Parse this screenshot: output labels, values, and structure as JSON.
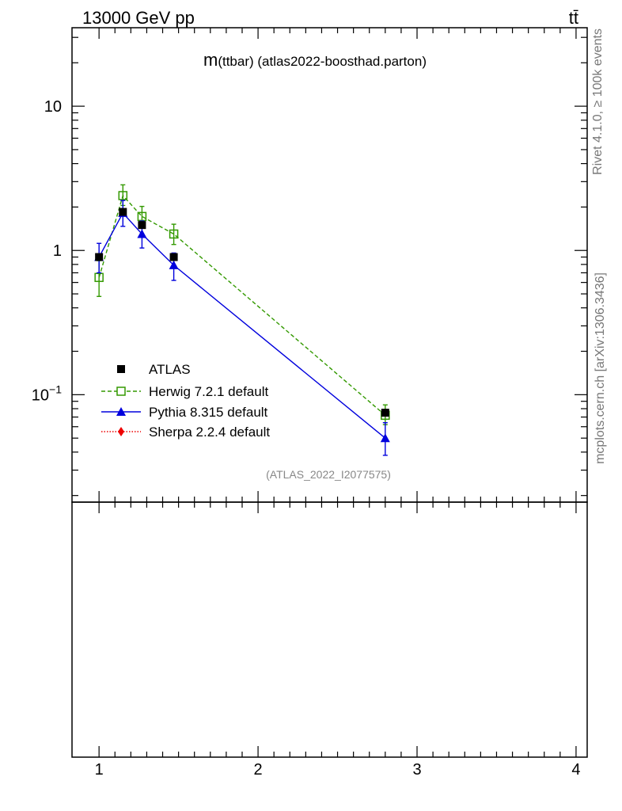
{
  "header": {
    "energy_label": "13000 GeV pp",
    "process_label": "tt̄"
  },
  "side_labels": {
    "rivet": "Rivet 4.1.0, ≥ 100k events",
    "mcplots": "mcplots.cern.ch [arXiv:1306.3436]"
  },
  "colors": {
    "atlas": "#000000",
    "herwig": "#339900",
    "pythia": "#0000dd",
    "sherpa": "#ee0000",
    "watermark": "#888888"
  },
  "chart_data": {
    "type": "line",
    "title": "m(ttbar) (atlas2022-boosthad.parton)",
    "title_main": "m",
    "title_rest": "(ttbar) (atlas2022-boosthad.parton)",
    "watermark": "(ATLAS_2022_I2077575)",
    "yscale": "log",
    "ylim": [
      0.018,
      35
    ],
    "xlim": [
      0.83,
      4.07
    ],
    "y_ticks": [
      {
        "value": 10,
        "label": "10"
      },
      {
        "value": 1,
        "label": "1"
      },
      {
        "value": 0.1,
        "label": "10",
        "sup": "−1"
      }
    ],
    "x_ticks": [
      {
        "value": 1,
        "label": "1"
      },
      {
        "value": 2,
        "label": "2"
      },
      {
        "value": 3,
        "label": "3"
      },
      {
        "value": 4,
        "label": "4"
      }
    ],
    "legend_position": "lower-left",
    "series": [
      {
        "name": "ATLAS",
        "marker": "square-filled",
        "line": "none",
        "x": [
          1.0,
          1.15,
          1.27,
          1.47,
          2.8
        ],
        "y": [
          0.9,
          1.85,
          1.5,
          0.9,
          0.075
        ],
        "err_lo": [
          0,
          0,
          0,
          0,
          0
        ],
        "err_hi": [
          0,
          0,
          0,
          0,
          0
        ]
      },
      {
        "name": "Herwig 7.2.1 default",
        "marker": "square-open",
        "line": "dashed",
        "x": [
          1.0,
          1.15,
          1.27,
          1.47,
          2.8
        ],
        "y": [
          0.65,
          2.4,
          1.72,
          1.3,
          0.072
        ],
        "err_lo": [
          0.17,
          0.35,
          0.27,
          0.2,
          0.01
        ],
        "err_hi": [
          0.2,
          0.45,
          0.3,
          0.22,
          0.013
        ]
      },
      {
        "name": "Pythia 8.315 default",
        "marker": "triangle-filled",
        "line": "solid",
        "x": [
          1.0,
          1.15,
          1.27,
          1.47,
          2.8
        ],
        "y": [
          0.9,
          1.82,
          1.3,
          0.79,
          0.05
        ],
        "err_lo": [
          0.2,
          0.35,
          0.26,
          0.17,
          0.012
        ],
        "err_hi": [
          0.22,
          0.4,
          0.3,
          0.17,
          0.014
        ]
      },
      {
        "name": "Sherpa 2.2.4 default",
        "marker": "diamond-filled",
        "line": "dotted",
        "x": [],
        "y": [],
        "err_lo": [],
        "err_hi": []
      }
    ]
  }
}
